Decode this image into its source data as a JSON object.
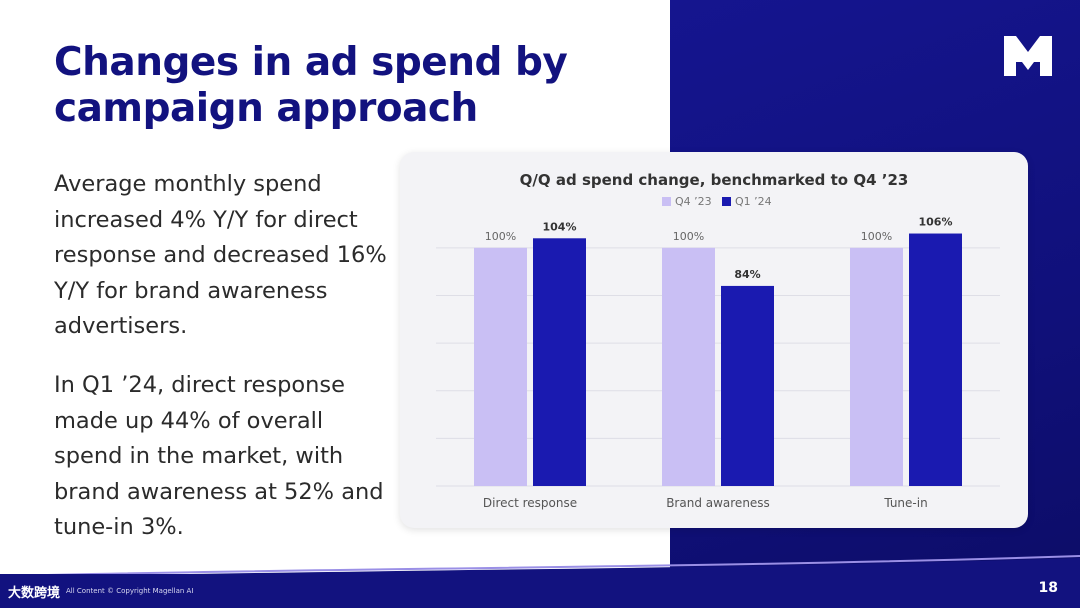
{
  "slide": {
    "title": "Changes in ad spend by campaign approach",
    "paragraph1": "Average monthly spend increased 4% Y/Y for direct response and decreased 16% Y/Y for brand awareness advertisers.",
    "paragraph2": "In Q1 ’24, direct response made up 44% of overall spend in the market, with brand awareness at 52% and tune-in 3%.",
    "page_number": "18",
    "footer_mark": "大数跨境",
    "footer_copyright": "All Content © Copyright Magellan AI",
    "logo_icon": "m-logo-icon"
  },
  "colors": {
    "brand_navy": "#12127f",
    "series_q4": "#c9bff4",
    "series_q1": "#1a1ab0"
  },
  "chart_data": {
    "type": "bar",
    "title": "Q/Q ad spend change, benchmarked to Q4 ’23",
    "categories": [
      "Direct response",
      "Brand awareness",
      "Tune-in"
    ],
    "series": [
      {
        "name": "Q4 ’23",
        "values": [
          100,
          100,
          100
        ],
        "labels": [
          "100%",
          "100%",
          "100%"
        ]
      },
      {
        "name": "Q1 ’24",
        "values": [
          104,
          84,
          106
        ],
        "labels": [
          "104%",
          "84%",
          "106%"
        ]
      }
    ],
    "ylim": [
      0,
      110
    ],
    "grid": true,
    "legend": "top-center"
  }
}
